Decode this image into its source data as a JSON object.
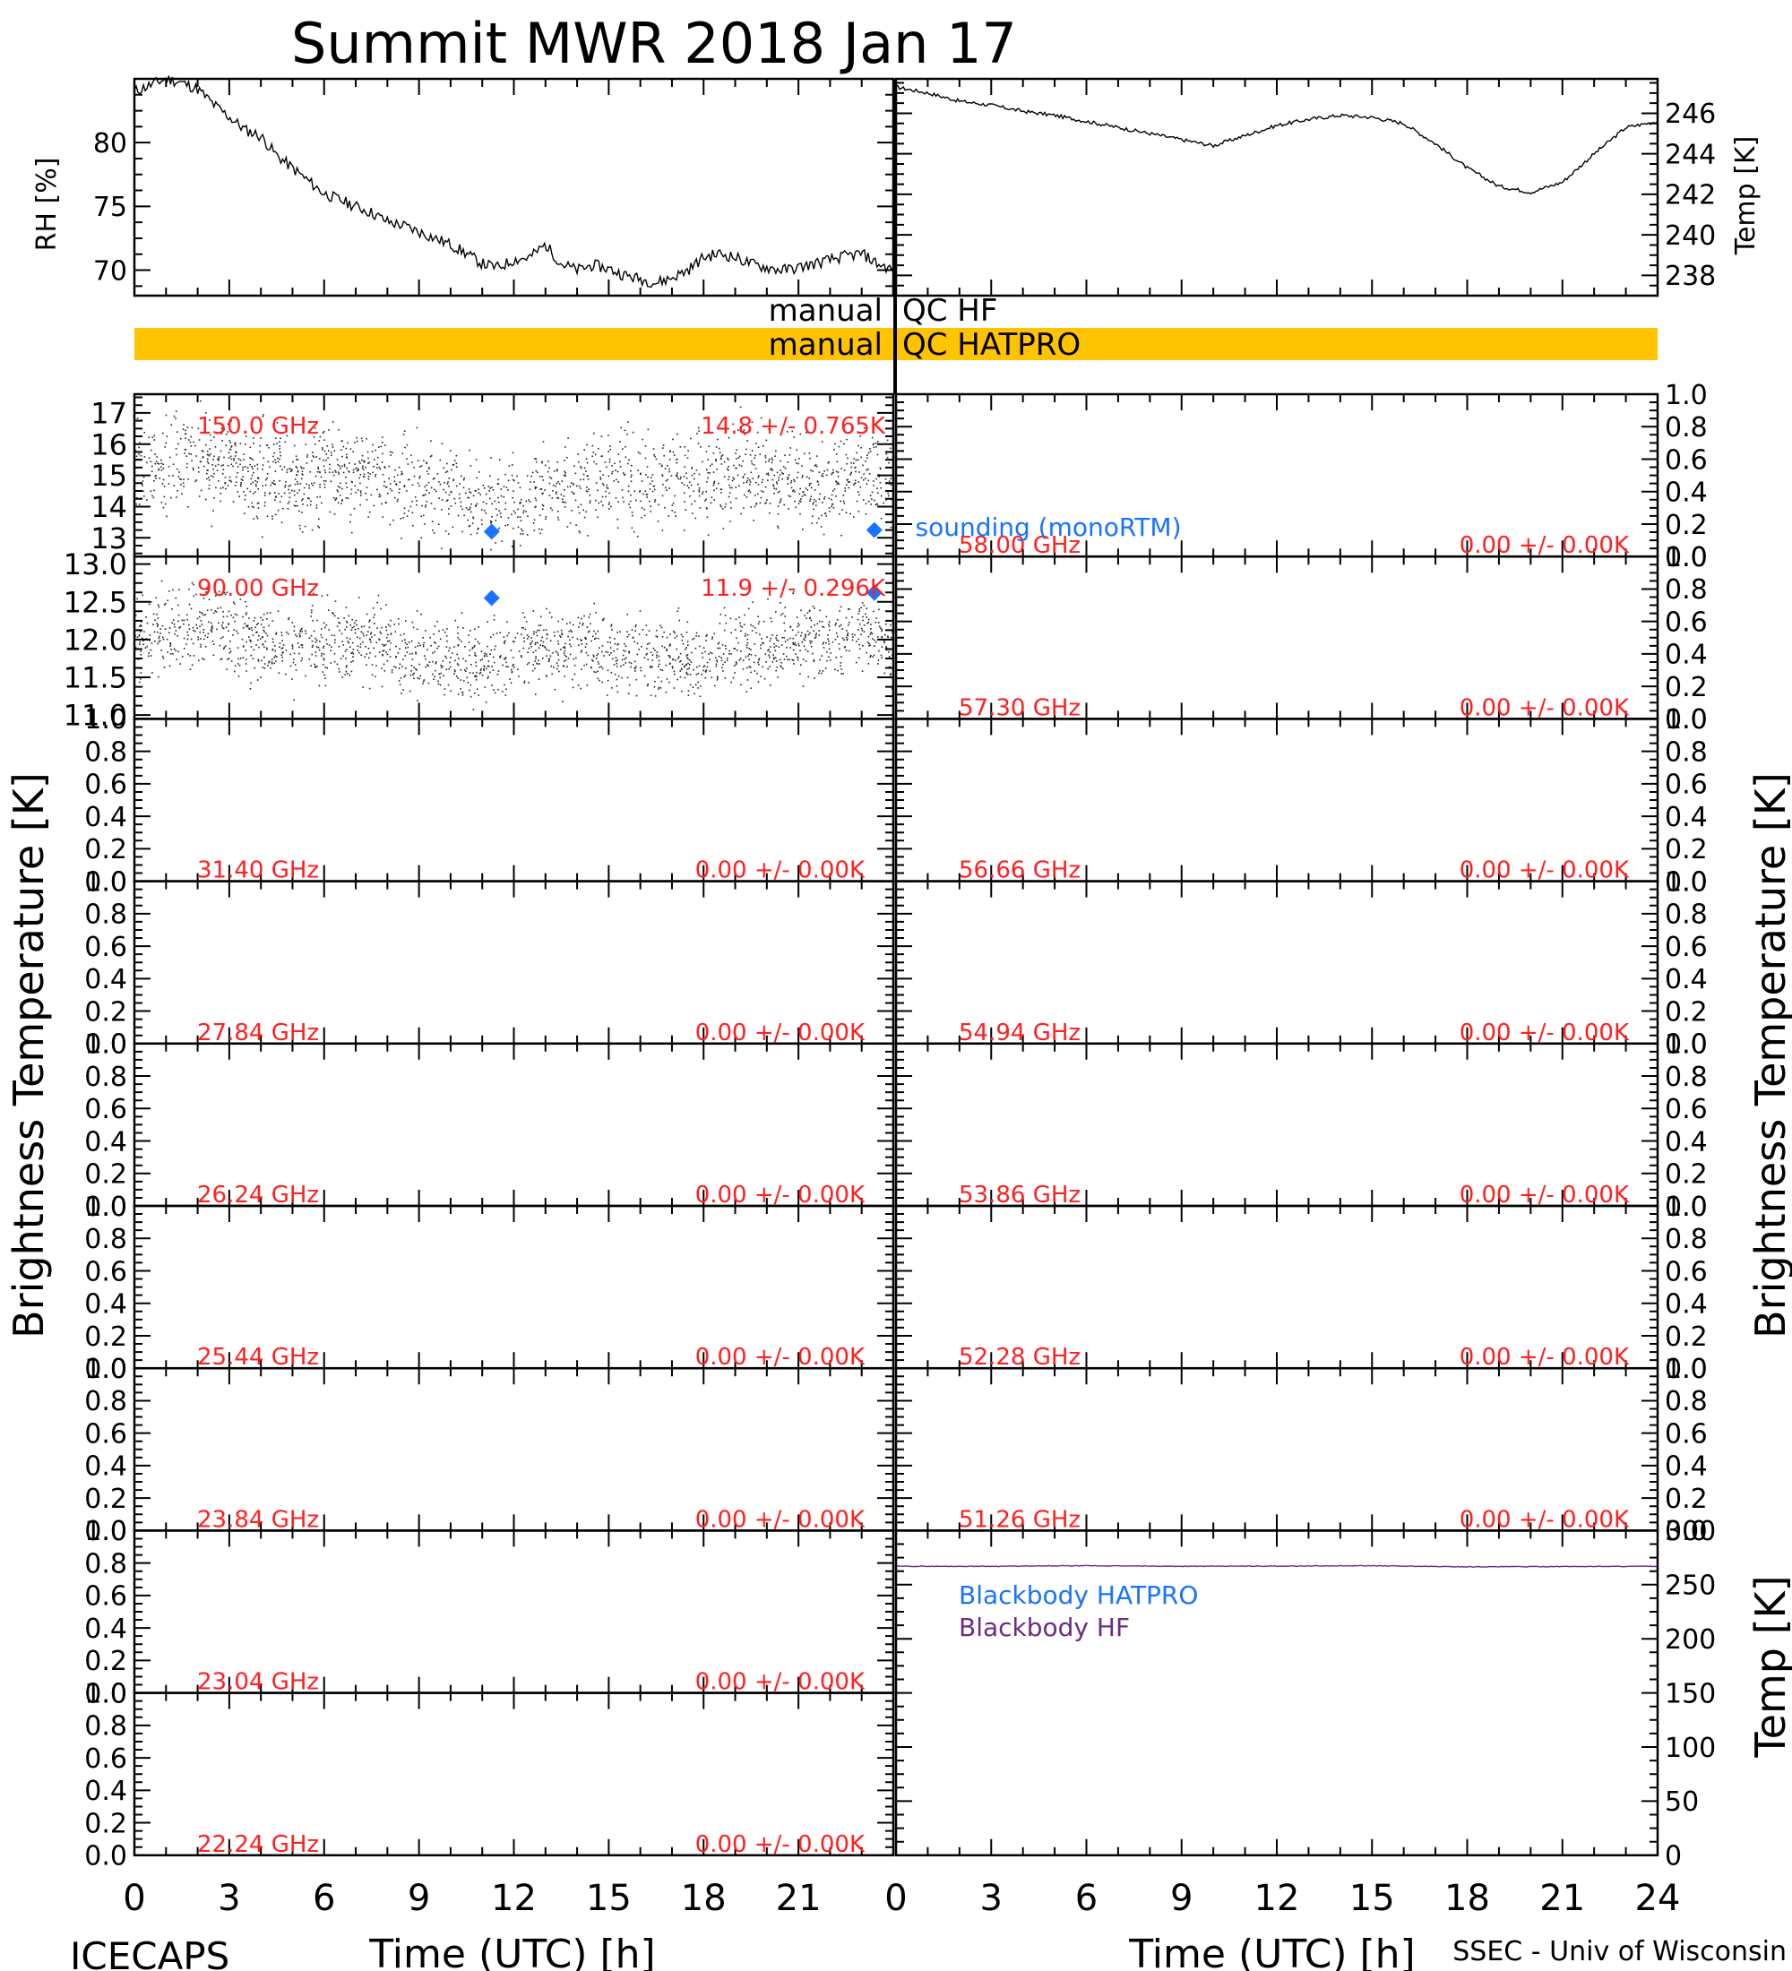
{
  "title": "Summit MWR 2018 Jan 17",
  "footer": {
    "left": "ICECAPS",
    "right": "SSEC - Univ of Wisconsin"
  },
  "x_axis": {
    "label": "Time (UTC) [h]",
    "ticks": [
      "0",
      "3",
      "6",
      "9",
      "12",
      "15",
      "18",
      "21",
      "24"
    ],
    "range": [
      0,
      24
    ]
  },
  "y_labels": {
    "rh": "RH [%]",
    "temp": "Temp [K]",
    "tb": "Brightness Temperature [K]",
    "bb_temp": "Temp [K]"
  },
  "qc": {
    "hf_left": "manual",
    "hf_right": "QC HF",
    "hatpro_left": "manual",
    "hatpro_right": "QC HATPRO",
    "hatpro_color": "#FFC300"
  },
  "colors": {
    "sounding": "#1874FF",
    "channel_label": "#FF2020",
    "bb_hatpro": "#1874FF",
    "bb_hf": "#6B2C82"
  },
  "sounding_label": "sounding (monoRTM)",
  "chart_data": [
    {
      "type": "line",
      "panel": "rh",
      "ylabel": "RH [%]",
      "xlim": [
        0,
        24
      ],
      "ylim": [
        68.0,
        85.0
      ],
      "yticks": [
        "70",
        "75",
        "80"
      ],
      "x": [
        0,
        0.5,
        1,
        1.5,
        2,
        2.5,
        3,
        3.5,
        4,
        4.5,
        5,
        5.5,
        6,
        6.5,
        7,
        7.5,
        8,
        8.5,
        9,
        9.5,
        10,
        10.5,
        11,
        11.5,
        12,
        12.5,
        13,
        13.5,
        14,
        14.5,
        15,
        15.5,
        16,
        16.5,
        17,
        17.5,
        18,
        18.5,
        19,
        19.5,
        20,
        20.5,
        21,
        21.5,
        22,
        22.5,
        23,
        23.5,
        24
      ],
      "y": [
        84,
        84.5,
        85,
        84.7,
        84.2,
        83,
        82,
        81,
        80.5,
        79,
        78,
        77,
        76,
        75.5,
        75,
        74.5,
        73.8,
        73.5,
        73,
        72.5,
        72,
        71.3,
        70.5,
        70.2,
        70.8,
        71,
        72,
        70.5,
        70,
        70.4,
        70.1,
        69.6,
        69.3,
        69,
        69.4,
        70,
        71,
        71.3,
        71,
        70.5,
        70.2,
        70,
        70.2,
        70.5,
        70.8,
        71.1,
        71.3,
        70.5,
        70
      ]
    },
    {
      "type": "line",
      "panel": "temperature",
      "ylabel": "Temp [K]",
      "xlim": [
        0,
        24
      ],
      "ylim": [
        237.0,
        247.7
      ],
      "yticks": [
        "238",
        "240",
        "242",
        "244",
        "246"
      ],
      "x": [
        0,
        1,
        2,
        3,
        4,
        5,
        6,
        7,
        8,
        9,
        10,
        11,
        12,
        13,
        14,
        15,
        16,
        17,
        18,
        19,
        20,
        21,
        22,
        23,
        24
      ],
      "y": [
        247.3,
        247,
        246.6,
        246.4,
        246.1,
        245.9,
        245.6,
        245.3,
        245.0,
        244.7,
        244.4,
        244.9,
        245.4,
        245.7,
        245.9,
        245.8,
        245.5,
        244.5,
        243.3,
        242.4,
        242.1,
        242.6,
        244.0,
        245.3,
        245.6
      ]
    },
    {
      "type": "scatter",
      "channel": "150.0 GHz",
      "annotation": "14.8 +/- 0.765K",
      "xlim": [
        0,
        24
      ],
      "ylim": [
        12.4,
        17.6
      ],
      "yticks": [
        "13",
        "14",
        "15",
        "16",
        "17"
      ],
      "axis_side": "left",
      "x": [
        0,
        1,
        2,
        3,
        4,
        5,
        6,
        7,
        8,
        9,
        10,
        11,
        12,
        13,
        14,
        15,
        16,
        17,
        18,
        19,
        20,
        21,
        22,
        23,
        24
      ],
      "y": [
        15.2,
        15.5,
        15.6,
        15.3,
        15.0,
        14.8,
        15.1,
        15.2,
        14.9,
        14.7,
        14.5,
        14.2,
        14.0,
        14.6,
        14.8,
        14.9,
        14.9,
        14.8,
        15.0,
        15.2,
        14.9,
        14.8,
        14.7,
        15.1,
        14.8
      ],
      "sounding": {
        "x": [
          11.3,
          23.4
        ],
        "y": [
          13.2,
          13.25
        ]
      }
    },
    {
      "type": "scatter",
      "channel": "90.00 GHz",
      "annotation": "11.9 +/- 0.296K",
      "xlim": [
        0,
        24
      ],
      "ylim": [
        10.95,
        13.1
      ],
      "yticks": [
        "11.0",
        "11.5",
        "12.0",
        "12.5",
        "13.0"
      ],
      "axis_side": "left",
      "x": [
        0,
        1,
        2,
        3,
        4,
        5,
        6,
        7,
        8,
        9,
        10,
        11,
        12,
        13,
        14,
        15,
        16,
        17,
        18,
        19,
        20,
        21,
        22,
        23,
        24
      ],
      "y": [
        12.0,
        12.1,
        12.2,
        12.1,
        12.0,
        11.9,
        12.0,
        12.0,
        11.9,
        11.8,
        11.7,
        11.7,
        11.8,
        11.9,
        11.9,
        11.9,
        11.8,
        11.8,
        11.8,
        11.9,
        11.9,
        12.0,
        12.0,
        12.1,
        11.9
      ],
      "sounding": {
        "x": [
          11.3,
          23.4
        ],
        "y": [
          12.55,
          12.62
        ]
      }
    },
    {
      "type": "table",
      "note": "empty channel panels",
      "left_channels": [
        "31.40 GHz",
        "27.84 GHz",
        "26.24 GHz",
        "25.44 GHz",
        "23.84 GHz",
        "23.04 GHz",
        "22.24 GHz"
      ],
      "right_channels": [
        "58.00 GHz",
        "57.30 GHz",
        "56.66 GHz",
        "54.94 GHz",
        "53.86 GHz",
        "52.28 GHz",
        "51.26 GHz"
      ],
      "annotation": "0.00 +/- 0.00K",
      "ylim": [
        0,
        1
      ],
      "yticks": [
        "0.0",
        "0.2",
        "0.4",
        "0.6",
        "0.8",
        "1.0"
      ]
    },
    {
      "type": "line",
      "panel": "blackbody",
      "ylabel": "Temp [K]",
      "xlim": [
        0,
        24
      ],
      "ylim": [
        0,
        300
      ],
      "yticks": [
        "0",
        "50",
        "100",
        "150",
        "200",
        "250",
        "300"
      ],
      "series": [
        {
          "name": "Blackbody HATPRO",
          "x": [
            0,
            24
          ],
          "y": [
            0,
            0
          ]
        },
        {
          "name": "Blackbody HF",
          "x": [
            0,
            3,
            6,
            9,
            12,
            15,
            18,
            21,
            24
          ],
          "y": [
            267,
            267,
            267.5,
            267,
            267.2,
            267.5,
            266.5,
            266.8,
            267
          ]
        }
      ]
    }
  ]
}
